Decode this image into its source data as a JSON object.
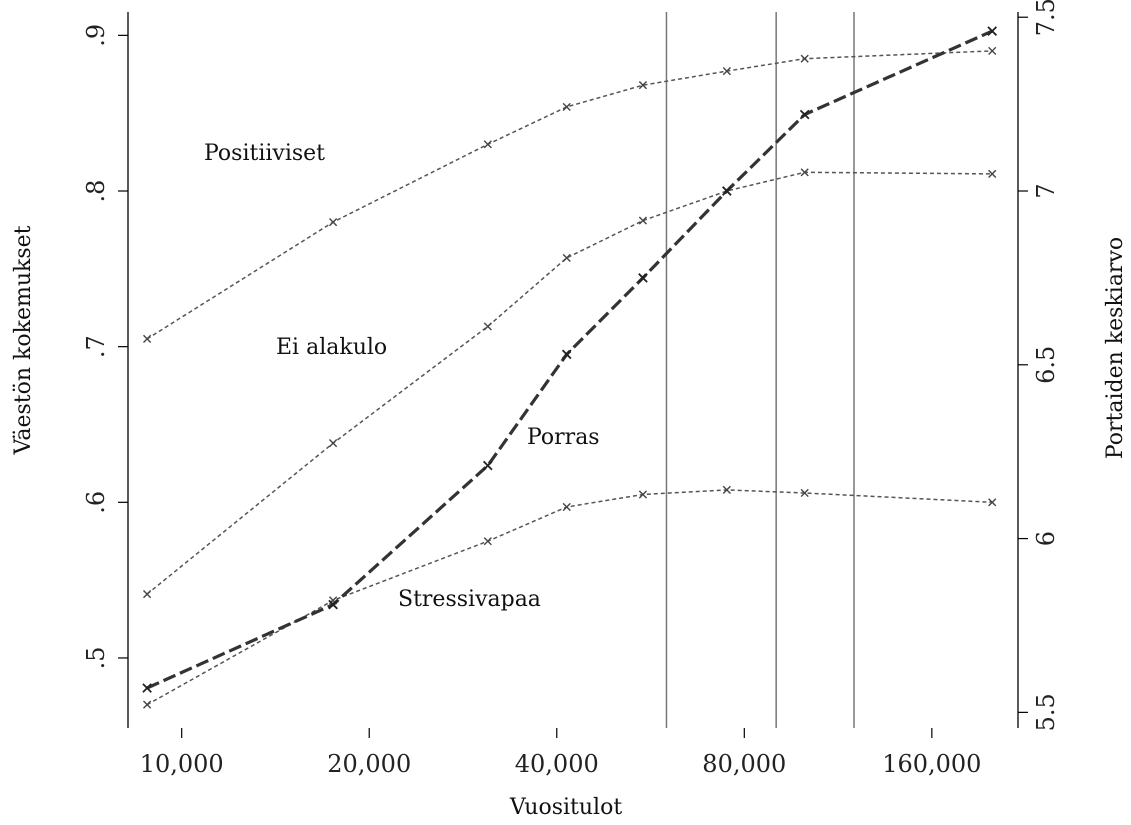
{
  "chart_data": {
    "type": "line",
    "xlabel": "Vuositulot",
    "ylabel_left": "Väestön kokemukset",
    "ylabel_right": "Portaiden keskiarvo",
    "x_scale": "log2",
    "x_ticks": [
      {
        "value": 10000,
        "label": "10,000"
      },
      {
        "value": 20000,
        "label": "20,000"
      },
      {
        "value": 40000,
        "label": "40,000"
      },
      {
        "value": 80000,
        "label": "80,000"
      },
      {
        "value": 160000,
        "label": "160,000"
      }
    ],
    "xlim": [
      8200,
      220000
    ],
    "ylim_left": [
      0.455,
      0.915
    ],
    "ylim_right": [
      5.455,
      7.515
    ],
    "y_ticks_left": [
      {
        "value": 0.5,
        "label": ".5"
      },
      {
        "value": 0.6,
        "label": ".6"
      },
      {
        "value": 0.7,
        "label": ".7"
      },
      {
        "value": 0.8,
        "label": ".8"
      },
      {
        "value": 0.9,
        "label": ".9"
      }
    ],
    "y_ticks_right": [
      {
        "value": 5.5,
        "label": "5.5"
      },
      {
        "value": 6,
        "label": "6"
      },
      {
        "value": 6.5,
        "label": "6.5"
      },
      {
        "value": 7,
        "label": "7"
      },
      {
        "value": 7.5,
        "label": "7.5"
      }
    ],
    "vertical_lines": [
      60000,
      90000,
      120000
    ],
    "grid": false,
    "series": [
      {
        "name": "Positiiviset",
        "axis": "left",
        "style": "thin-dashed",
        "x": [
          8800,
          17500,
          31000,
          41500,
          55000,
          75000,
          100000,
          200000
        ],
        "y": [
          0.705,
          0.78,
          0.83,
          0.854,
          0.868,
          0.877,
          0.885,
          0.89
        ]
      },
      {
        "name": "Ei alakulo",
        "axis": "left",
        "style": "thin-dashed",
        "x": [
          8800,
          17500,
          31000,
          41500,
          55000,
          75000,
          100000,
          200000
        ],
        "y": [
          0.541,
          0.638,
          0.713,
          0.757,
          0.781,
          0.8,
          0.812,
          0.811
        ]
      },
      {
        "name": "Stressivapaa",
        "axis": "left",
        "style": "thin-dashed",
        "x": [
          8800,
          17500,
          31000,
          41500,
          55000,
          75000,
          100000,
          200000
        ],
        "y": [
          0.47,
          0.537,
          0.575,
          0.597,
          0.605,
          0.608,
          0.606,
          0.6
        ]
      },
      {
        "name": "Porras",
        "axis": "right",
        "style": "thick-dashed",
        "x": [
          8800,
          17500,
          31000,
          41500,
          55000,
          75000,
          100000,
          200000
        ],
        "y": [
          5.57,
          5.81,
          6.21,
          6.53,
          6.75,
          7.0,
          7.22,
          7.46
        ]
      }
    ],
    "annotations": [
      {
        "text": "Positiiviset",
        "series": "Positiiviset"
      },
      {
        "text": "Ei alakulo",
        "series": "Ei alakulo"
      },
      {
        "text": "Porras",
        "series": "Porras"
      },
      {
        "text": "Stressivapaa",
        "series": "Stressivapaa"
      }
    ]
  }
}
